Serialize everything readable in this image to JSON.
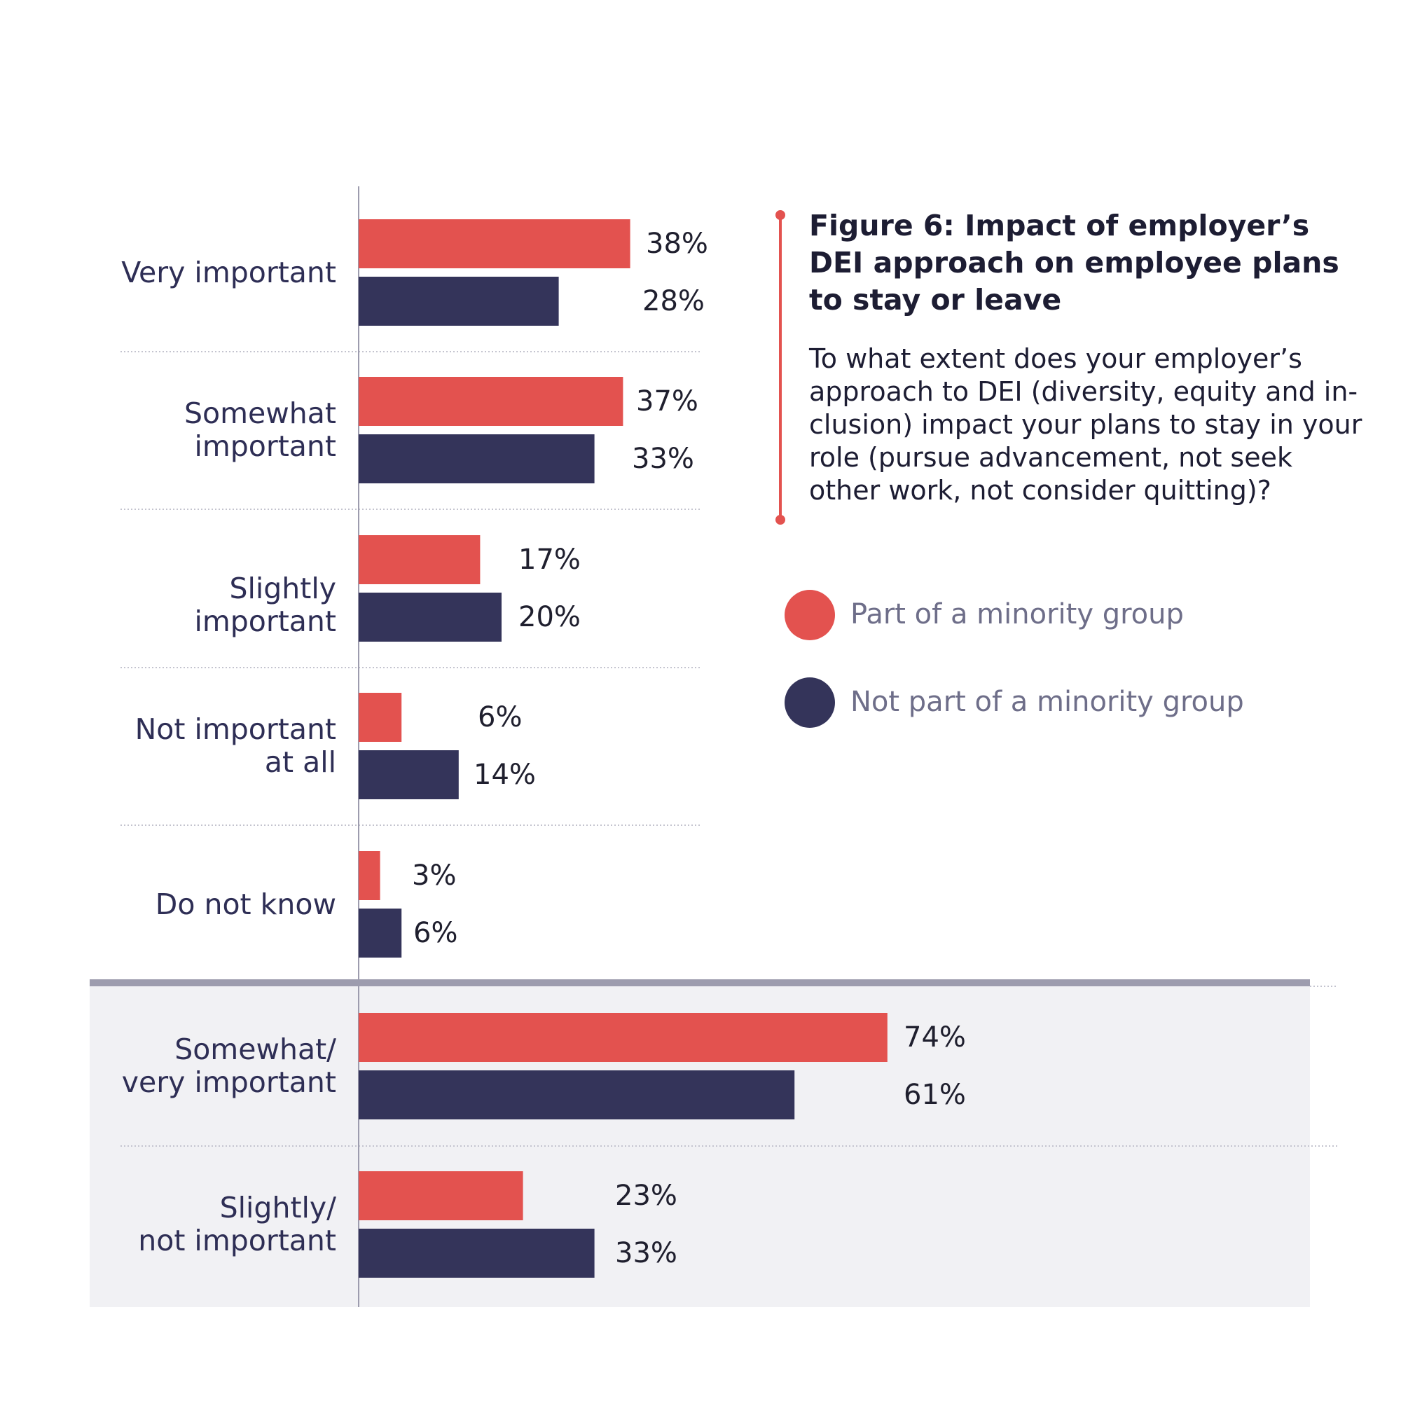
{
  "title": "Figure 6: Impact of employer’s DEI approach on employee plans to stay or leave",
  "question": "To what extent does your employer’s approach to DEI (diversity, equity and in-clusion) impact your plans to stay in your role (pursue advancement, not seek other work, not consider quitting)?",
  "legend": [
    {
      "label": "Part of a minority group",
      "color": "#e3524f"
    },
    {
      "label": "Not part of a minority group",
      "color": "#34345a"
    }
  ],
  "chart_data": {
    "type": "bar",
    "orientation": "horizontal",
    "categories": [
      "Very important",
      "Somewhat important",
      "Slightly important",
      "Not important at all",
      "Do not know",
      "Somewhat/ very important",
      "Slightly/ not important"
    ],
    "category_labels": [
      "Very important",
      "Somewhat\nimportant",
      "Slightly important",
      "Not important\nat all",
      "Do not know",
      "Somewhat/\nvery important",
      "Slightly/\nnot important"
    ],
    "series": [
      {
        "name": "Part of a minority group",
        "color": "#e3524f",
        "values": [
          38,
          37,
          17,
          6,
          3,
          74,
          23
        ],
        "labels": [
          "38%",
          "37%",
          "17%",
          "6%",
          "3%",
          "74%",
          "23%"
        ]
      },
      {
        "name": "Not part of a minority group",
        "color": "#34345a",
        "values": [
          28,
          33,
          20,
          14,
          6,
          61,
          33
        ],
        "labels": [
          "28%",
          "33%",
          "20%",
          "14%",
          "6%",
          "61%",
          "33%"
        ]
      }
    ],
    "xlim": [
      0,
      100
    ],
    "summary_rows": [
      "Somewhat/ very important",
      "Slightly/ not important"
    ],
    "legend_position": "right",
    "grid": false
  }
}
